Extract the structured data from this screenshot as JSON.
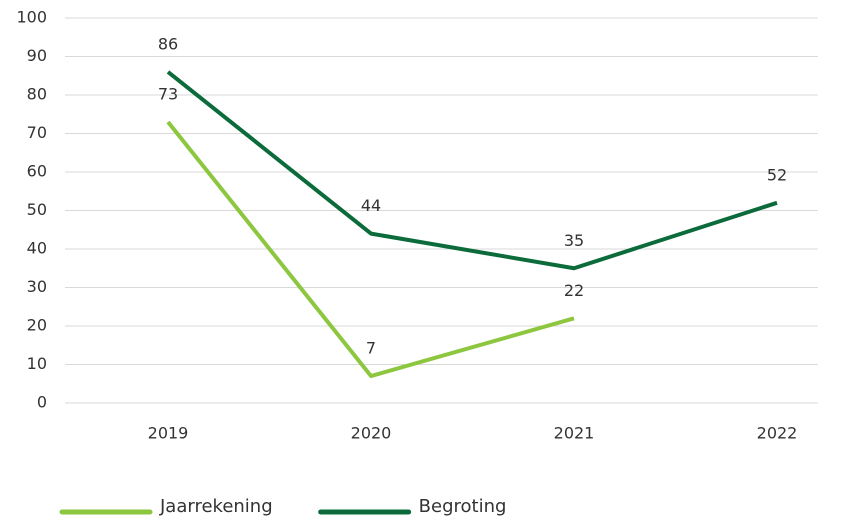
{
  "chart_data": {
    "type": "line",
    "categories": [
      "2019",
      "2020",
      "2021",
      "2022"
    ],
    "series": [
      {
        "name": "Jaarrekening",
        "color": "#8dc63f",
        "values": [
          73,
          7,
          22,
          null
        ]
      },
      {
        "name": "Begroting",
        "color": "#0b6b3a",
        "values": [
          86,
          44,
          35,
          52
        ]
      }
    ],
    "ylim": [
      0,
      100
    ],
    "yticks": [
      0,
      10,
      20,
      30,
      40,
      50,
      60,
      70,
      80,
      90,
      100
    ],
    "grid": true,
    "legend": "bottom"
  }
}
